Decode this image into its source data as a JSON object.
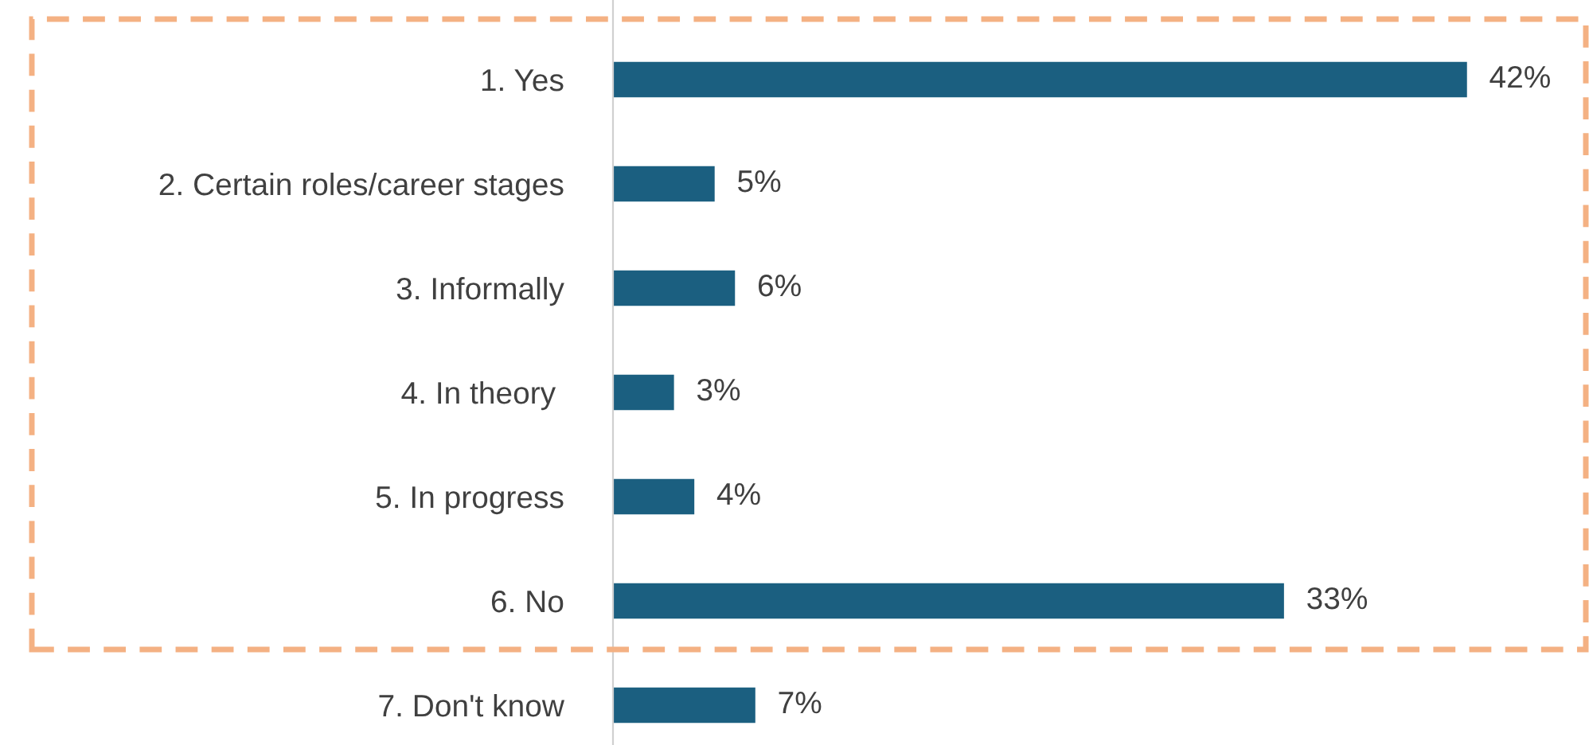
{
  "chart_data": {
    "type": "bar",
    "orientation": "horizontal",
    "categories": [
      "1. Yes",
      "2. Certain roles/career stages",
      "3. Informally",
      "4. In theory ",
      "5. In progress",
      "6. No",
      "7. Don't know"
    ],
    "values": [
      42,
      5,
      6,
      3,
      4,
      33,
      7
    ],
    "value_labels": [
      "42%",
      "5%",
      "6%",
      "3%",
      "4%",
      "33%",
      "7%"
    ],
    "color": "#1b5f80",
    "grid": false,
    "legend": false
  }
}
